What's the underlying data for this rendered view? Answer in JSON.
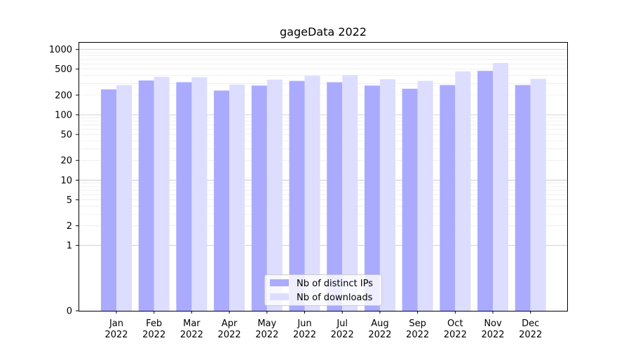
{
  "chart_data": {
    "type": "bar",
    "title": "gageData 2022",
    "xlabel": "",
    "ylabel": "",
    "yscale": "symlog",
    "ylim": [
      0,
      1300
    ],
    "yticks": [
      0,
      1,
      2,
      5,
      10,
      20,
      50,
      100,
      200,
      500,
      1000
    ],
    "grid": "horizontal",
    "legend_position": "bottom-center",
    "categories": [
      [
        "Jan",
        "2022"
      ],
      [
        "Feb",
        "2022"
      ],
      [
        "Mar",
        "2022"
      ],
      [
        "Apr",
        "2022"
      ],
      [
        "May",
        "2022"
      ],
      [
        "Jun",
        "2022"
      ],
      [
        "Jul",
        "2022"
      ],
      [
        "Aug",
        "2022"
      ],
      [
        "Sep",
        "2022"
      ],
      [
        "Oct",
        "2022"
      ],
      [
        "Nov",
        "2022"
      ],
      [
        "Dec",
        "2022"
      ]
    ],
    "series": [
      {
        "name": "Nb of distinct IPs",
        "color": "#aaaaff",
        "values": [
          245,
          335,
          315,
          235,
          280,
          330,
          315,
          280,
          250,
          285,
          470,
          285
        ]
      },
      {
        "name": "Nb of downloads",
        "color": "#ddddff",
        "values": [
          285,
          380,
          375,
          290,
          345,
          395,
          405,
          350,
          330,
          460,
          620,
          355
        ]
      }
    ]
  }
}
